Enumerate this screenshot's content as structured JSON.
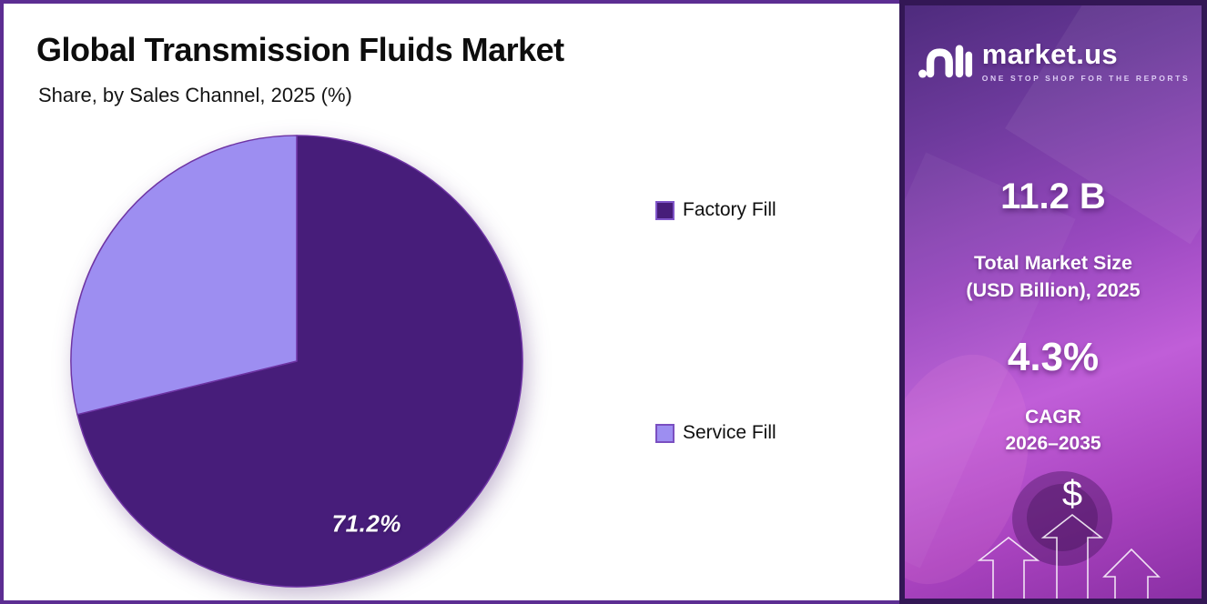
{
  "chart_data": {
    "type": "pie",
    "title": "Global Transmission Fluids Market",
    "subtitle": "Share, by Sales Channel, 2025 (%)",
    "labels": [
      "Factory Fill",
      "Service Fill"
    ],
    "values": [
      71.2,
      28.8
    ],
    "colors": [
      "#471d7a",
      "#9d8ef1"
    ],
    "outline_color": "#6e34a4",
    "data_labels": [
      "71.2%",
      ""
    ],
    "legend_position": "right",
    "start_angle": "12-o-clock, clockwise"
  },
  "sidebar": {
    "brand": "market.us",
    "tagline": "ONE STOP SHOP FOR THE REPORTS",
    "stats": {
      "market_size": {
        "value": "11.2 B",
        "label_line1": "Total Market Size",
        "label_line2": "(USD Billion), 2025"
      },
      "cagr": {
        "value": "4.3%",
        "label_line1": "CAGR",
        "label_line2": "2026–2035"
      }
    },
    "decor": {
      "dollar_symbol": "$"
    }
  }
}
